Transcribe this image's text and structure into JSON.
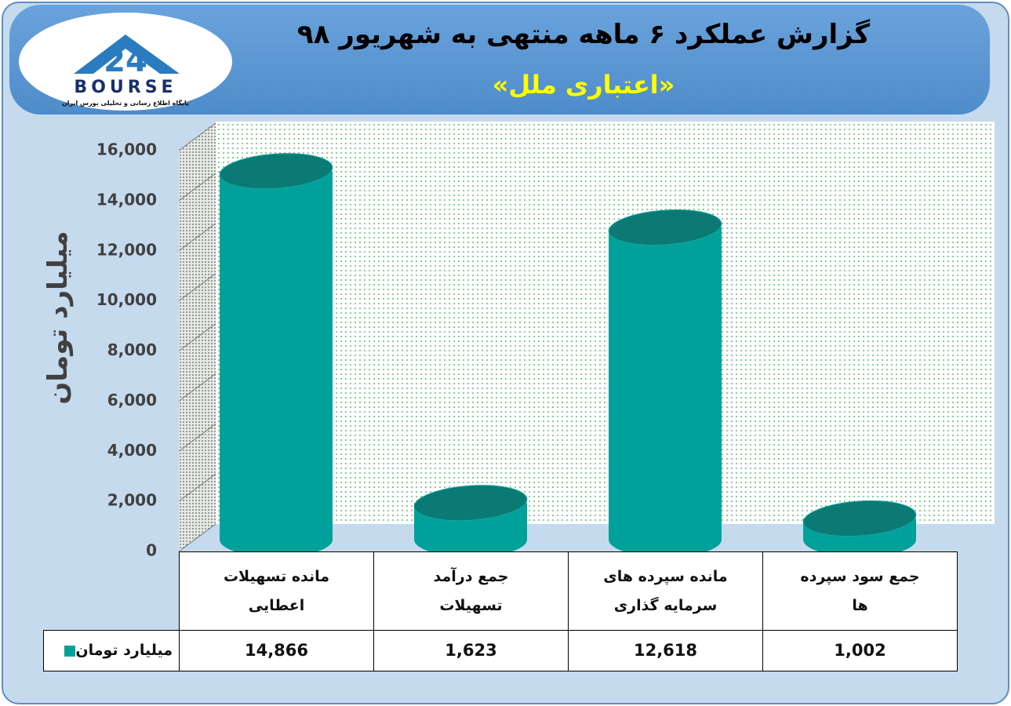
{
  "logo": {
    "number": "24",
    "name": "BOURSE",
    "tagline": "پایگاه اطلاع رسانی و تحلیلی بورس ایران"
  },
  "chart_data": {
    "type": "bar",
    "title": "گزارش عملکرد ۶ ماهه منتهی به شهریور ۹۸",
    "subtitle": "«اعتباری ملل»",
    "y_label": "میلیارد تومان",
    "categories": [
      "مانده تسهیلات اعطایی",
      "جمع درآمد تسهیلات",
      "مانده سپرده های سرمایه گذاری",
      "جمع سود سپرده ها"
    ],
    "series": [
      {
        "name": "میلیارد تومان",
        "color": "#00a19a",
        "values": [
          14866,
          1623,
          12618,
          1002
        ],
        "value_labels": [
          "14,866",
          "1,623",
          "12,618",
          "1,002"
        ]
      }
    ],
    "ylim": [
      0,
      16000
    ],
    "yticks": [
      0,
      {
        "value": 2000,
        "label": "2,000"
      },
      {
        "value": 4000,
        "label": "4,000"
      },
      {
        "value": 6000,
        "label": "6,000"
      },
      {
        "value": 8000,
        "label": "8,000"
      },
      {
        "value": 10000,
        "label": "10,000"
      },
      {
        "value": 12000,
        "label": "12,000"
      },
      {
        "value": 14000,
        "label": "14,000"
      },
      {
        "value": 16000,
        "label": "16,000"
      }
    ],
    "grid": true
  }
}
